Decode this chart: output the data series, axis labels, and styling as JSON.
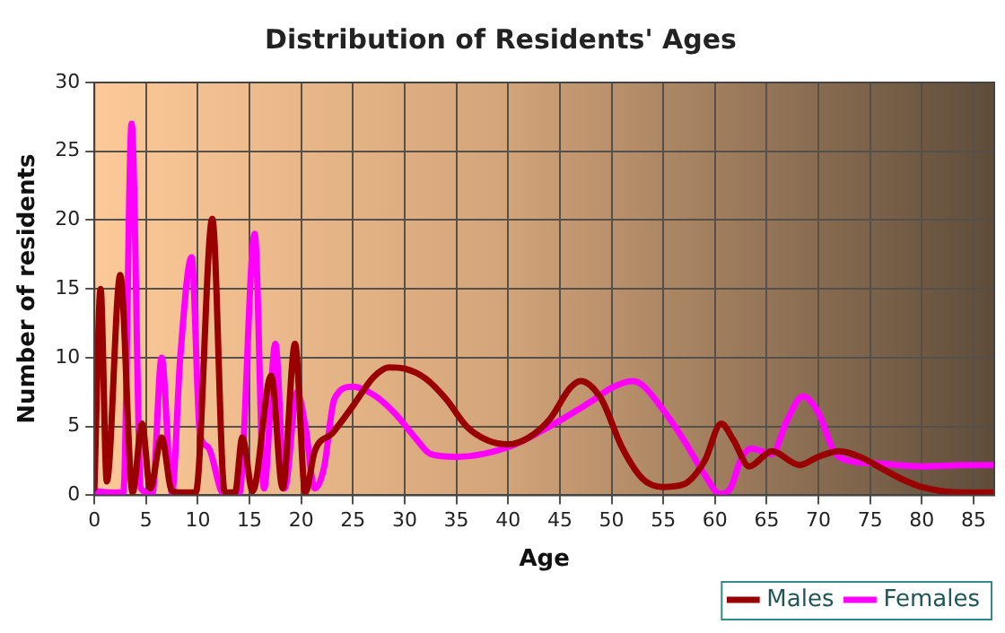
{
  "chart_data": {
    "type": "line",
    "title": "Distribution of Residents' Ages",
    "xlabel": "Age",
    "ylabel": "Number of residents",
    "xlim": [
      0,
      87
    ],
    "xticks": [
      0,
      5,
      10,
      15,
      20,
      25,
      30,
      35,
      40,
      45,
      50,
      55,
      60,
      65,
      70,
      75,
      80,
      85
    ],
    "ylim": [
      0,
      30
    ],
    "yticks": [
      0,
      5,
      10,
      15,
      20,
      25,
      30
    ],
    "grid": true,
    "legend": "bottom right",
    "marker": "none",
    "series": [
      {
        "name": "Males",
        "color": "#990000",
        "x": [
          0,
          0.6,
          1.2,
          2.5,
          3.7,
          4.6,
          5.4,
          6.5,
          7.5,
          8.5,
          9.8,
          11.4,
          12.6,
          13.6,
          14.3,
          15.3,
          17.1,
          18.2,
          19.4,
          20.4,
          21.3,
          23,
          25,
          27,
          28.5,
          30,
          32,
          34,
          36,
          38,
          40,
          42,
          44,
          46,
          47,
          49,
          51,
          53,
          55,
          57,
          59,
          60.6,
          61.8,
          63.3,
          65.5,
          68.2,
          70,
          72,
          74,
          76,
          78,
          80,
          82,
          84,
          87
        ],
        "values": [
          0.5,
          15,
          1,
          16,
          0.2,
          5.2,
          0.5,
          4.2,
          0.3,
          0.2,
          0.2,
          20.1,
          0.2,
          0.2,
          4.2,
          0.3,
          8.7,
          0.5,
          11,
          0.2,
          3.2,
          4.5,
          6.5,
          8.6,
          9.3,
          9.2,
          8.5,
          7,
          5,
          4,
          3.7,
          4.2,
          5.5,
          7.8,
          8.3,
          7,
          3.5,
          1.2,
          0.6,
          0.8,
          2.5,
          5.2,
          4,
          2.1,
          3.2,
          2.2,
          2.8,
          3.2,
          2.8,
          2,
          1.2,
          0.6,
          0.3,
          0.2,
          0.2
        ]
      },
      {
        "name": "Females",
        "color": "#ff00ff",
        "x": [
          0,
          2,
          2.8,
          3.6,
          4.5,
          5.6,
          6.5,
          7.5,
          8.3,
          9.4,
          10.2,
          11,
          12.5,
          14,
          15.5,
          16.4,
          17.5,
          18.4,
          19.6,
          20.4,
          21.3,
          22.2,
          23.2,
          25,
          27,
          29,
          31,
          32.5,
          35,
          40,
          44,
          48,
          50,
          52,
          53,
          55,
          57,
          59,
          60.5,
          61.5,
          62.5,
          63.5,
          65.5,
          67,
          68.5,
          70,
          71.5,
          73,
          76,
          80,
          84,
          87
        ],
        "values": [
          0.3,
          0.2,
          0.2,
          27,
          0.5,
          0.1,
          10,
          0.2,
          10,
          17.3,
          4.5,
          3.5,
          0.1,
          0.1,
          19,
          0.5,
          11,
          0.5,
          7.5,
          5,
          0.5,
          2,
          7,
          7.9,
          7.3,
          6,
          4.2,
          3,
          2.8,
          3.5,
          5,
          6.8,
          7.8,
          8.3,
          8,
          6.2,
          4,
          1.5,
          0.1,
          0.5,
          2.6,
          3.4,
          3,
          5.5,
          7.2,
          6,
          3.2,
          2.5,
          2.3,
          2.1,
          2.2,
          2.2
        ]
      }
    ]
  }
}
